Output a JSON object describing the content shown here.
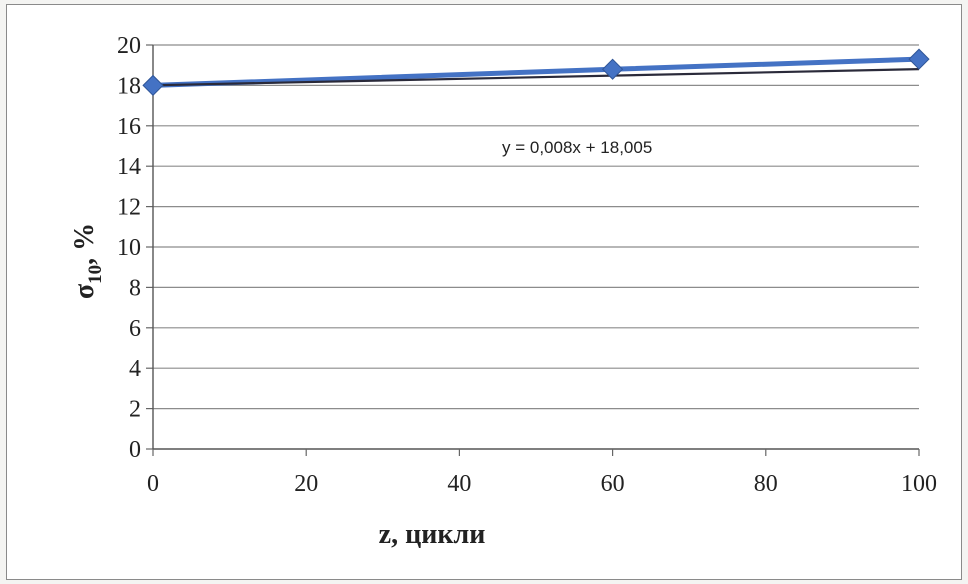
{
  "chart_data": {
    "type": "line",
    "x": [
      0,
      60,
      100
    ],
    "series": [
      {
        "values": [
          18.0,
          18.8,
          19.3
        ],
        "color": "#4472c4"
      }
    ],
    "trendline": {
      "equation": "y = 0,008x + 18,005",
      "slope": 0.008,
      "intercept": 18.005,
      "color": "#2a2a3a"
    },
    "xlabel": "z, цикли",
    "ylabel_main": "σ",
    "ylabel_sub": "10",
    "ylabel_rest": ", %",
    "xlim": [
      0,
      100
    ],
    "ylim": [
      0,
      20
    ],
    "xticks": [
      "0",
      "20",
      "40",
      "60",
      "80",
      "100"
    ],
    "yticks": [
      "0",
      "2",
      "4",
      "6",
      "8",
      "10",
      "12",
      "14",
      "16",
      "18",
      "20"
    ],
    "grid": true
  }
}
